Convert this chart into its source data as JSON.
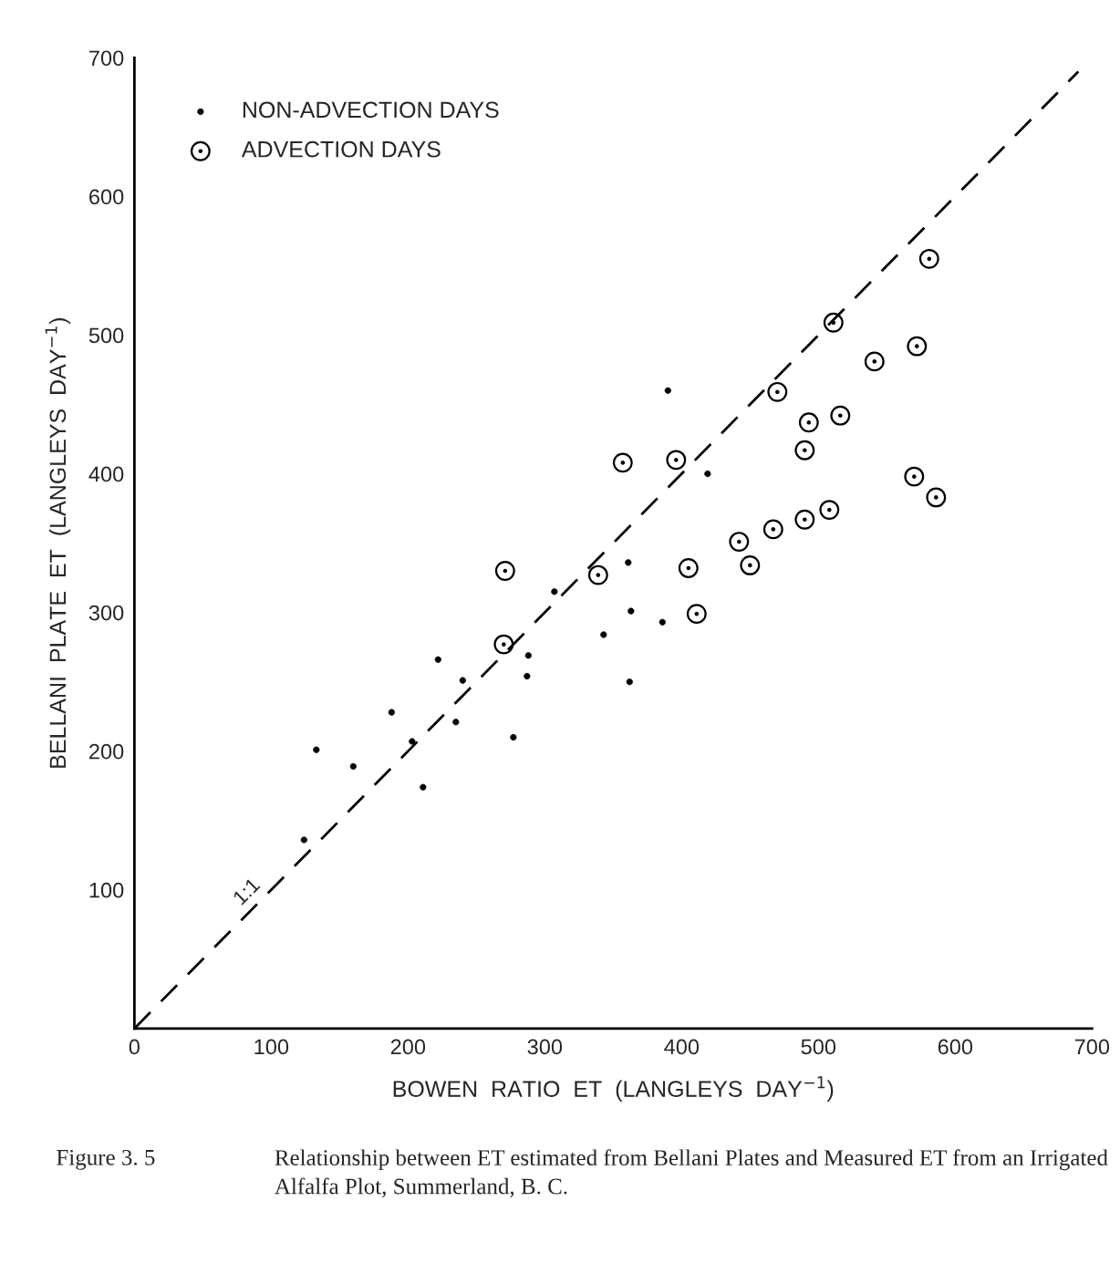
{
  "chart_data": {
    "type": "scatter",
    "xlabel": "BOWEN  RATIO  ET  (LANGLEYS  DAY$^{−1}$)",
    "ylabel": "BELLANI  PLATE  ET  (LANGLEYS  DAY$^{−1}$)",
    "xlim": [
      0,
      700
    ],
    "ylim": [
      0,
      700
    ],
    "xticks": [
      0,
      100,
      200,
      300,
      400,
      500,
      600,
      700
    ],
    "yticks": [
      100,
      200,
      300,
      400,
      500,
      600,
      700
    ],
    "grid": false,
    "legend": "top left",
    "series": [
      {
        "name": "NON-ADVECTION DAYS",
        "color": "#000000",
        "marker": "circle",
        "x": [
          124,
          133,
          160,
          188,
          203,
          211,
          222,
          235,
          240,
          277,
          287,
          288,
          307,
          343,
          361,
          362,
          363,
          386,
          390,
          419
        ],
        "values": [
          136,
          201,
          189,
          228,
          207,
          174,
          266,
          221,
          251,
          210,
          254,
          269,
          315,
          284,
          336,
          250,
          301,
          293,
          460,
          400
        ]
      },
      {
        "name": "ADVECTION DAYS",
        "color": "#000000",
        "marker": "circle-dot",
        "x": [
          270,
          271,
          339,
          357,
          396,
          405,
          411,
          442,
          450,
          467,
          470,
          490,
          490,
          493,
          508,
          511,
          516,
          541,
          570,
          572,
          581,
          586
        ],
        "values": [
          277,
          330,
          327,
          408,
          410,
          332,
          299,
          351,
          334,
          360,
          459,
          367,
          417,
          437,
          374,
          509,
          442,
          481,
          398,
          492,
          555,
          383
        ]
      },
      {
        "type": "line",
        "line_style": "dashed",
        "color": "#000000",
        "x": [
          0,
          690
        ],
        "values": [
          0,
          690
        ]
      }
    ],
    "annotations": [
      "1:1",
      "Figure 3. 5",
      "Relationship between ET estimated from Bellani Plates and Measured ET from an Irrigated Alfalfa Plot, Summerland, B. C."
    ]
  }
}
